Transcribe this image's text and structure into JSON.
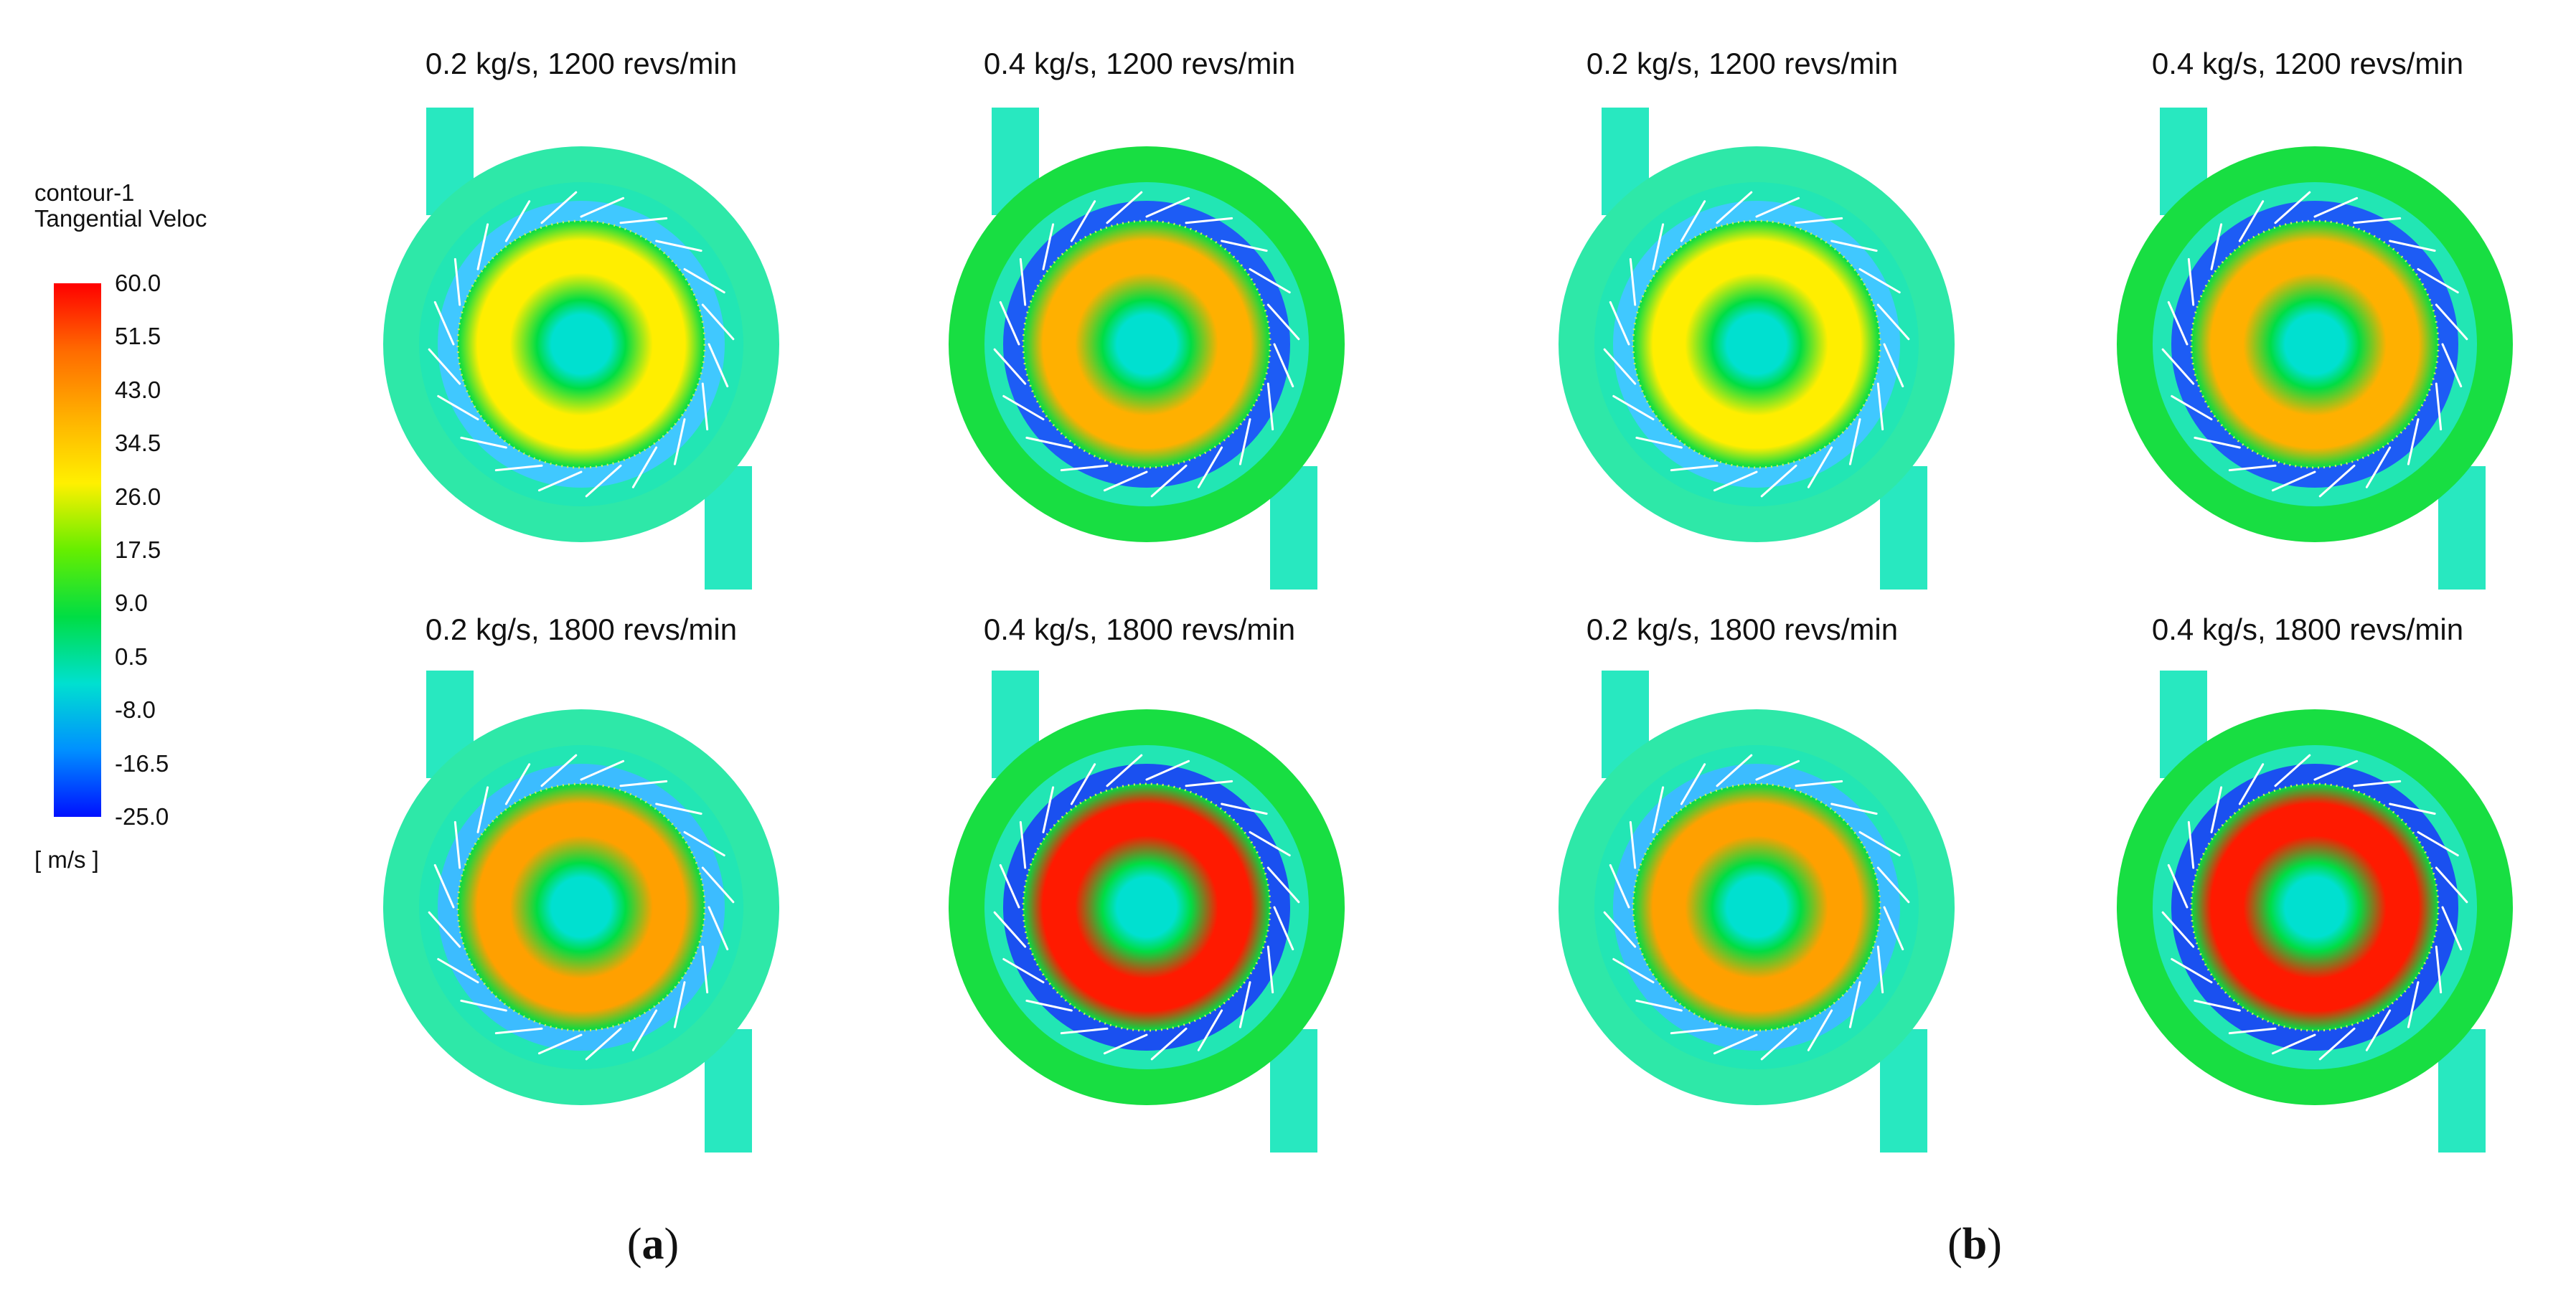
{
  "legend": {
    "title_line1": "contour-1",
    "title_line2": "Tangential Veloc",
    "unit": "[ m/s ]",
    "ticks": [
      "60.0",
      "51.5",
      "43.0",
      "34.5",
      "26.0",
      "17.5",
      "9.0",
      "0.5",
      "-8.0",
      "-16.5",
      "-25.0"
    ],
    "min": -25.0,
    "max": 60.0
  },
  "colors": {
    "high": "#ff0000",
    "mid": "#00dd44",
    "zero": "#00e0d0",
    "low": "#0010ff"
  },
  "panels": [
    {
      "label_open": "(",
      "label_letter": "a",
      "label_close": ")",
      "cases": [
        {
          "title": "0.2 kg/s, 1200 revs/min",
          "peak_color": "#ffee00",
          "blade_ring": "#40c8ff",
          "casing": "#2ee8a8"
        },
        {
          "title": "0.4 kg/s, 1200 revs/min",
          "peak_color": "#ffb000",
          "blade_ring": "#1d5cf5",
          "casing": "#18de42"
        },
        {
          "title": "0.2 kg/s, 1800 revs/min",
          "peak_color": "#ffa000",
          "blade_ring": "#3cbcff",
          "casing": "#2ee8a8"
        },
        {
          "title": "0.4 kg/s, 1800 revs/min",
          "peak_color": "#ff1a00",
          "blade_ring": "#1a50f0",
          "casing": "#18de42"
        }
      ]
    },
    {
      "label_open": "(",
      "label_letter": "b",
      "label_close": ")",
      "cases": [
        {
          "title": "0.2 kg/s, 1200 revs/min",
          "peak_color": "#ffee00",
          "blade_ring": "#40c8ff",
          "casing": "#2ee8a8"
        },
        {
          "title": "0.4 kg/s, 1200 revs/min",
          "peak_color": "#ffb000",
          "blade_ring": "#1d5cf5",
          "casing": "#18de42"
        },
        {
          "title": "0.2 kg/s, 1800 revs/min",
          "peak_color": "#ffa000",
          "blade_ring": "#3cbcff",
          "casing": "#2ee8a8"
        },
        {
          "title": "0.4 kg/s, 1800 revs/min",
          "peak_color": "#ff1a00",
          "blade_ring": "#1a50f0",
          "casing": "#18de42"
        }
      ]
    }
  ]
}
